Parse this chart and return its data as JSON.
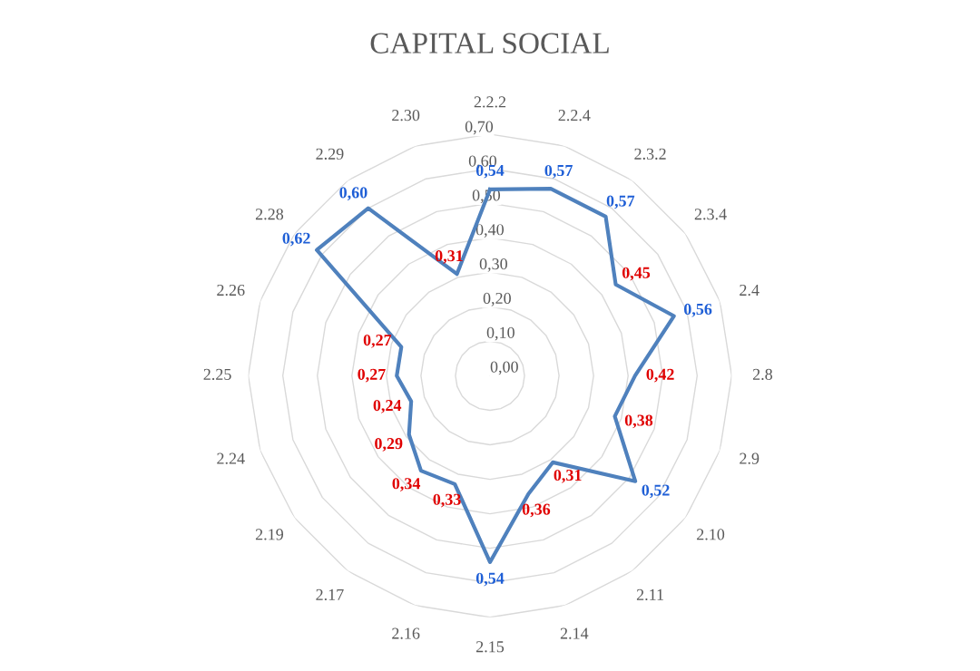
{
  "chart_data": {
    "type": "radar",
    "title": "CAPITAL SOCIAL",
    "categories": [
      "2.2.2",
      "2.2.4",
      "2.3.2",
      "2.3.4",
      "2.4",
      "2.8",
      "2.9",
      "2.10",
      "2.11",
      "2.14",
      "2.15",
      "2.16",
      "2.17",
      "2.19",
      "2.24",
      "2.25",
      "2.26",
      "2.28",
      "2.29",
      "2.30"
    ],
    "series": [
      {
        "color": "#4f81bd",
        "values": [
          0.54,
          0.57,
          0.57,
          0.45,
          0.56,
          0.42,
          0.38,
          0.52,
          0.31,
          0.36,
          0.54,
          0.33,
          0.34,
          0.29,
          0.24,
          0.27,
          0.27,
          0.62,
          0.6,
          0.31
        ],
        "value_labels": [
          "0,54",
          "0,57",
          "0,57",
          "0,45",
          "0,56",
          "0,42",
          "0,38",
          "0,52",
          "0,31",
          "0,36",
          "0,54",
          "0,33",
          "0,34",
          "0,29",
          "0,24",
          "0,27",
          "0,27",
          "0,62",
          "0,60",
          "0,31"
        ],
        "colors": [
          "#1f5fd6",
          "#1f5fd6",
          "#1f5fd6",
          "#e00000",
          "#1f5fd6",
          "#e00000",
          "#e00000",
          "#1f5fd6",
          "#e00000",
          "#e00000",
          "#1f5fd6",
          "#e00000",
          "#e00000",
          "#e00000",
          "#e00000",
          "#e00000",
          "#e00000",
          "#1f5fd6",
          "#1f5fd6",
          "#e00000"
        ]
      }
    ],
    "ylim": [
      0,
      0.7
    ],
    "yticks": [
      {
        "value": 0,
        "label": "0,00"
      },
      {
        "value": 0.1,
        "label": "0,10"
      },
      {
        "value": 0.2,
        "label": "0,20"
      },
      {
        "value": 0.3,
        "label": "0,30"
      },
      {
        "value": 0.4,
        "label": "0,40"
      },
      {
        "value": 0.5,
        "label": "0,50"
      },
      {
        "value": 0.6,
        "label": "0,60"
      },
      {
        "value": 0.7,
        "label": "0,70"
      }
    ],
    "grid": true,
    "line_style": "solid"
  }
}
